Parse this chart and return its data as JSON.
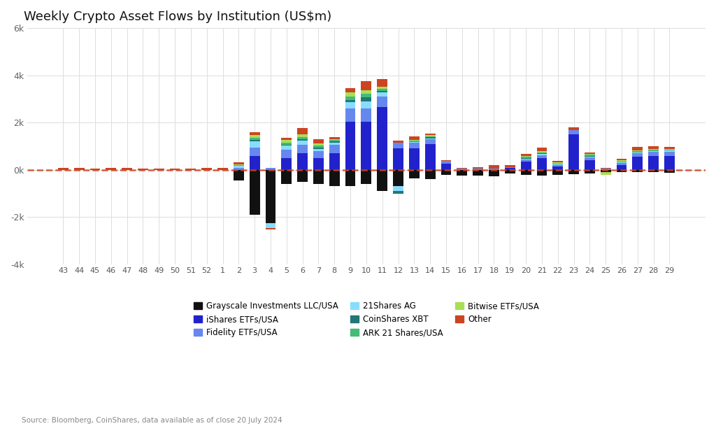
{
  "title": "Weekly Crypto Asset Flows by Institution (US$m)",
  "source_text": "Source: Bloomberg, CoinShares, data available as of close 20 July 2024",
  "ylim": [
    -4000,
    6000
  ],
  "yticks": [
    -4000,
    -2000,
    0,
    2000,
    4000,
    6000
  ],
  "ytick_labels": [
    "-4k",
    "-2k",
    "0k",
    "2k",
    "4k",
    "6k"
  ],
  "background_color": "#ffffff",
  "grid_color": "#dddddd",
  "categories": [
    43,
    44,
    45,
    46,
    47,
    48,
    49,
    50,
    51,
    52,
    1,
    2,
    3,
    4,
    5,
    6,
    7,
    8,
    9,
    10,
    11,
    12,
    13,
    14,
    15,
    16,
    17,
    18,
    19,
    20,
    21,
    22,
    23,
    24,
    25,
    26,
    27,
    28,
    29
  ],
  "series": {
    "Grayscale Investments LLC/USA": {
      "color": "#111111",
      "values": [
        0,
        0,
        0,
        0,
        0,
        0,
        0,
        0,
        0,
        0,
        0,
        -450,
        -1900,
        -2250,
        -600,
        -500,
        -600,
        -700,
        -700,
        -600,
        -900,
        -700,
        -350,
        -400,
        -200,
        -250,
        -250,
        -280,
        -150,
        -200,
        -250,
        -200,
        -180,
        -150,
        -100,
        -100,
        -100,
        -100,
        -130
      ]
    },
    "iShares ETFs/USA": {
      "color": "#2222cc",
      "values": [
        0,
        0,
        0,
        0,
        0,
        0,
        0,
        0,
        0,
        0,
        0,
        0,
        600,
        0,
        500,
        700,
        500,
        700,
        2050,
        2050,
        2650,
        900,
        900,
        1100,
        250,
        0,
        0,
        0,
        80,
        350,
        500,
        150,
        1500,
        400,
        0,
        200,
        550,
        600,
        600
      ]
    },
    "Fidelity ETFs/USA": {
      "color": "#6688ee",
      "values": [
        0,
        0,
        0,
        0,
        0,
        0,
        0,
        0,
        0,
        0,
        0,
        80,
        350,
        80,
        350,
        350,
        280,
        350,
        550,
        550,
        450,
        250,
        250,
        200,
        120,
        40,
        40,
        40,
        40,
        80,
        120,
        40,
        170,
        120,
        40,
        80,
        150,
        160,
        170
      ]
    },
    "21Shares AG": {
      "color": "#88ddff",
      "values": [
        0,
        0,
        0,
        0,
        0,
        0,
        0,
        0,
        0,
        0,
        0,
        80,
        250,
        -200,
        180,
        180,
        90,
        90,
        270,
        300,
        170,
        -180,
        40,
        40,
        0,
        0,
        0,
        0,
        0,
        40,
        40,
        40,
        0,
        40,
        0,
        40,
        40,
        40,
        40
      ]
    },
    "CoinShares XBT": {
      "color": "#227777",
      "values": [
        0,
        0,
        0,
        0,
        0,
        0,
        0,
        0,
        0,
        0,
        0,
        0,
        80,
        0,
        40,
        80,
        80,
        80,
        80,
        160,
        80,
        -120,
        0,
        40,
        0,
        0,
        0,
        0,
        0,
        40,
        40,
        0,
        0,
        40,
        0,
        0,
        0,
        0,
        0
      ]
    },
    "ARK 21 Shares/USA": {
      "color": "#44bb77",
      "values": [
        0,
        0,
        0,
        0,
        0,
        0,
        0,
        0,
        0,
        0,
        0,
        40,
        80,
        0,
        80,
        80,
        80,
        40,
        160,
        160,
        80,
        0,
        40,
        40,
        0,
        0,
        0,
        0,
        0,
        40,
        40,
        40,
        0,
        40,
        0,
        40,
        40,
        40,
        40
      ]
    },
    "Bitwise ETFs/USA": {
      "color": "#aade55",
      "values": [
        0,
        0,
        0,
        0,
        0,
        0,
        0,
        0,
        0,
        0,
        0,
        40,
        120,
        0,
        120,
        120,
        80,
        40,
        160,
        160,
        80,
        0,
        40,
        40,
        0,
        0,
        0,
        0,
        0,
        40,
        40,
        40,
        0,
        40,
        -120,
        40,
        40,
        40,
        40
      ]
    },
    "Other": {
      "color": "#cc4422",
      "values": [
        70,
        70,
        50,
        70,
        70,
        40,
        40,
        40,
        40,
        70,
        70,
        70,
        120,
        -80,
        80,
        250,
        200,
        80,
        180,
        370,
        330,
        90,
        130,
        80,
        40,
        40,
        80,
        160,
        80,
        80,
        160,
        80,
        120,
        40,
        40,
        80,
        160,
        130,
        80
      ]
    }
  },
  "legend_order": [
    "Grayscale Investments LLC/USA",
    "iShares ETFs/USA",
    "Fidelity ETFs/USA",
    "21Shares AG",
    "CoinShares XBT",
    "ARK 21 Shares/USA",
    "Bitwise ETFs/USA",
    "Other"
  ]
}
